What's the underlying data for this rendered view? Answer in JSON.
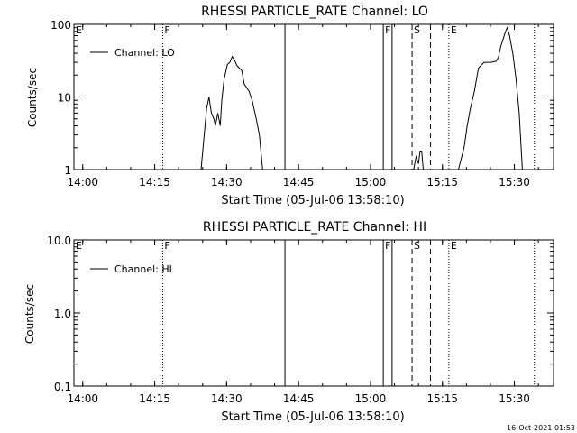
{
  "footer": {
    "timestamp": "16-Oct-2021 01:53"
  },
  "chart_data": [
    {
      "type": "line",
      "title": "RHESSI PARTICLE_RATE Channel: LO",
      "xlabel": "Start Time (05-Jul-06 13:58:10)",
      "ylabel": "Counts/sec",
      "xlim": [
        "13:58:10",
        "15:38:10"
      ],
      "ylim": [
        1,
        100
      ],
      "yscale": "log",
      "x_ticks": [
        "14:00",
        "14:15",
        "14:30",
        "14:45",
        "15:00",
        "15:15",
        "15:30"
      ],
      "y_ticks": [
        "1",
        "10",
        "100"
      ],
      "legend": {
        "position": "top-left",
        "entries": [
          "Channel: LO"
        ]
      },
      "markers": [
        {
          "label": "E",
          "time": "13:58:10",
          "style": "dotted"
        },
        {
          "label": "F",
          "time": "14:16:40",
          "style": "dotted"
        },
        {
          "label": "",
          "time": "14:42:10",
          "style": "solid"
        },
        {
          "label": "F",
          "time": "15:02:40",
          "style": "solid"
        },
        {
          "label": "",
          "time": "15:04:30",
          "style": "solid"
        },
        {
          "label": "S",
          "time": "15:08:40",
          "style": "dashed"
        },
        {
          "label": "",
          "time": "15:12:30",
          "style": "dashed"
        },
        {
          "label": "E",
          "time": "15:16:20",
          "style": "dotted"
        },
        {
          "label": "",
          "time": "15:34:10",
          "style": "dotted"
        }
      ],
      "series": [
        {
          "name": "Channel: LO",
          "segments": [
            [
              [
                "14:24:40",
                1
              ],
              [
                "14:25:50",
                7
              ],
              [
                "14:26:20",
                10
              ],
              [
                "14:26:50",
                6
              ],
              [
                "14:27:20",
                5
              ],
              [
                "14:27:40",
                4
              ],
              [
                "14:28:10",
                6
              ],
              [
                "14:28:40",
                4
              ],
              [
                "14:29:00",
                9
              ],
              [
                "14:29:30",
                18
              ],
              [
                "14:30:10",
                28
              ],
              [
                "14:30:40",
                30
              ],
              [
                "14:31:10",
                36
              ],
              [
                "14:31:40",
                32
              ],
              [
                "14:32:10",
                27
              ],
              [
                "14:32:40",
                25
              ],
              [
                "14:33:10",
                23
              ],
              [
                "14:33:40",
                15
              ],
              [
                "14:34:40",
                12
              ],
              [
                "14:35:20",
                9
              ],
              [
                "14:36:10",
                5
              ],
              [
                "14:36:50",
                3
              ],
              [
                "14:37:30",
                1
              ]
            ],
            [
              [
                "15:09:00",
                1
              ],
              [
                "15:09:30",
                1.5
              ],
              [
                "15:10:00",
                1.2
              ],
              [
                "15:10:20",
                1.8
              ],
              [
                "15:10:40",
                1.8
              ],
              [
                "15:11:00",
                1
              ]
            ],
            [
              [
                "15:18:20",
                1
              ],
              [
                "15:19:30",
                2
              ],
              [
                "15:20:10",
                4
              ],
              [
                "15:20:50",
                7
              ],
              [
                "15:21:40",
                12
              ],
              [
                "15:22:30",
                25
              ],
              [
                "15:23:40",
                30
              ],
              [
                "15:25:10",
                30
              ],
              [
                "15:26:10",
                31
              ],
              [
                "15:26:40",
                35
              ],
              [
                "15:27:10",
                50
              ],
              [
                "15:27:40",
                63
              ],
              [
                "15:28:10",
                80
              ],
              [
                "15:28:30",
                90
              ],
              [
                "15:29:00",
                70
              ],
              [
                "15:29:40",
                40
              ],
              [
                "15:30:20",
                18
              ],
              [
                "15:31:00",
                6
              ],
              [
                "15:31:40",
                1
              ]
            ]
          ]
        }
      ]
    },
    {
      "type": "line",
      "title": "RHESSI PARTICLE_RATE Channel: HI",
      "xlabel": "Start Time (05-Jul-06 13:58:10)",
      "ylabel": "Counts/sec",
      "xlim": [
        "13:58:10",
        "15:38:10"
      ],
      "ylim": [
        0.1,
        10
      ],
      "yscale": "log",
      "x_ticks": [
        "14:00",
        "14:15",
        "14:30",
        "14:45",
        "15:00",
        "15:15",
        "15:30"
      ],
      "y_ticks": [
        "0.1",
        "1.0",
        "10.0"
      ],
      "legend": {
        "position": "top-left",
        "entries": [
          "Channel: HI"
        ]
      },
      "markers": [
        {
          "label": "E",
          "time": "13:58:10",
          "style": "dotted"
        },
        {
          "label": "F",
          "time": "14:16:40",
          "style": "dotted"
        },
        {
          "label": "",
          "time": "14:42:10",
          "style": "solid"
        },
        {
          "label": "F",
          "time": "15:02:40",
          "style": "solid"
        },
        {
          "label": "",
          "time": "15:04:30",
          "style": "solid"
        },
        {
          "label": "S",
          "time": "15:08:40",
          "style": "dashed"
        },
        {
          "label": "",
          "time": "15:12:30",
          "style": "dashed"
        },
        {
          "label": "E",
          "time": "15:16:20",
          "style": "dotted"
        },
        {
          "label": "",
          "time": "15:34:10",
          "style": "dotted"
        }
      ],
      "series": [
        {
          "name": "Channel: HI",
          "segments": []
        }
      ]
    }
  ]
}
